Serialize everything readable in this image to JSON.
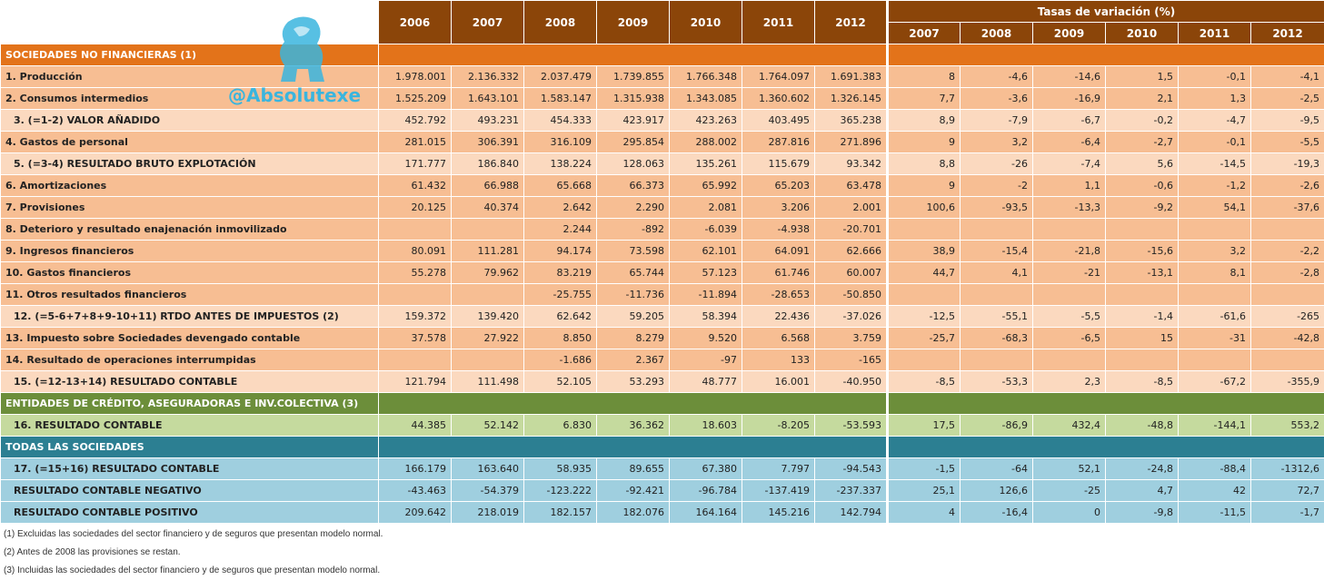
{
  "header": {
    "years": [
      "2006",
      "2007",
      "2008",
      "2009",
      "2010",
      "2011",
      "2012"
    ],
    "rates_title": "Tasas de variación (%)",
    "rate_years": [
      "2007",
      "2008",
      "2009",
      "2010",
      "2011",
      "2012"
    ]
  },
  "watermark": {
    "handle": "@Absolutexe",
    "logo": "gryphon-logo-icon"
  },
  "sections": {
    "s1": "SOCIEDADES NO FINANCIERAS (1)",
    "s2": "ENTIDADES DE CRÉDITO, ASEGURADORAS E INV.COLECTIVA (3)",
    "s3": "TODAS LAS SOCIEDADES"
  },
  "rows": [
    {
      "label": "1. Producción",
      "values": [
        "1.978.001",
        "2.136.332",
        "2.037.479",
        "1.739.855",
        "1.766.348",
        "1.764.097",
        "1.691.383"
      ],
      "rates": [
        "8",
        "-4,6",
        "-14,6",
        "1,5",
        "-0,1",
        "-4,1"
      ]
    },
    {
      "label": "2. Consumos intermedios",
      "values": [
        "1.525.209",
        "1.643.101",
        "1.583.147",
        "1.315.938",
        "1.343.085",
        "1.360.602",
        "1.326.145"
      ],
      "rates": [
        "7,7",
        "-3,6",
        "-16,9",
        "2,1",
        "1,3",
        "-2,5"
      ]
    },
    {
      "label": "3. (=1-2) VALOR AÑADIDO",
      "values": [
        "452.792",
        "493.231",
        "454.333",
        "423.917",
        "423.263",
        "403.495",
        "365.238"
      ],
      "rates": [
        "8,9",
        "-7,9",
        "-6,7",
        "-0,2",
        "-4,7",
        "-9,5"
      ]
    },
    {
      "label": "4. Gastos de personal",
      "values": [
        "281.015",
        "306.391",
        "316.109",
        "295.854",
        "288.002",
        "287.816",
        "271.896"
      ],
      "rates": [
        "9",
        "3,2",
        "-6,4",
        "-2,7",
        "-0,1",
        "-5,5"
      ]
    },
    {
      "label": "5. (=3-4) RESULTADO BRUTO EXPLOTACIÓN",
      "values": [
        "171.777",
        "186.840",
        "138.224",
        "128.063",
        "135.261",
        "115.679",
        "93.342"
      ],
      "rates": [
        "8,8",
        "-26",
        "-7,4",
        "5,6",
        "-14,5",
        "-19,3"
      ]
    },
    {
      "label": "6. Amortizaciones",
      "values": [
        "61.432",
        "66.988",
        "65.668",
        "66.373",
        "65.992",
        "65.203",
        "63.478"
      ],
      "rates": [
        "9",
        "-2",
        "1,1",
        "-0,6",
        "-1,2",
        "-2,6"
      ]
    },
    {
      "label": "7. Provisiones",
      "values": [
        "20.125",
        "40.374",
        "2.642",
        "2.290",
        "2.081",
        "3.206",
        "2.001"
      ],
      "rates": [
        "100,6",
        "-93,5",
        "-13,3",
        "-9,2",
        "54,1",
        "-37,6"
      ]
    },
    {
      "label": "8. Deterioro y resultado enajenación inmovilizado",
      "values": [
        "",
        "",
        "2.244",
        "-892",
        "-6.039",
        "-4.938",
        "-20.701"
      ],
      "rates": [
        "",
        "",
        "",
        "",
        "",
        ""
      ]
    },
    {
      "label": "9. Ingresos financieros",
      "values": [
        "80.091",
        "111.281",
        "94.174",
        "73.598",
        "62.101",
        "64.091",
        "62.666"
      ],
      "rates": [
        "38,9",
        "-15,4",
        "-21,8",
        "-15,6",
        "3,2",
        "-2,2"
      ]
    },
    {
      "label": "10. Gastos financieros",
      "values": [
        "55.278",
        "79.962",
        "83.219",
        "65.744",
        "57.123",
        "61.746",
        "60.007"
      ],
      "rates": [
        "44,7",
        "4,1",
        "-21",
        "-13,1",
        "8,1",
        "-2,8"
      ]
    },
    {
      "label": "11. Otros resultados financieros",
      "values": [
        "",
        "",
        "-25.755",
        "-11.736",
        "-11.894",
        "-28.653",
        "-50.850"
      ],
      "rates": [
        "",
        "",
        "",
        "",
        "",
        ""
      ]
    },
    {
      "label": "12. (=5-6+7+8+9-10+11) RTDO ANTES DE IMPUESTOS (2)",
      "values": [
        "159.372",
        "139.420",
        "62.642",
        "59.205",
        "58.394",
        "22.436",
        "-37.026"
      ],
      "rates": [
        "-12,5",
        "-55,1",
        "-5,5",
        "-1,4",
        "-61,6",
        "-265"
      ]
    },
    {
      "label": "13. Impuesto sobre Sociedades devengado contable",
      "values": [
        "37.578",
        "27.922",
        "8.850",
        "8.279",
        "9.520",
        "6.568",
        "3.759"
      ],
      "rates": [
        "-25,7",
        "-68,3",
        "-6,5",
        "15",
        "-31",
        "-42,8"
      ]
    },
    {
      "label": "14. Resultado de operaciones interrumpidas",
      "values": [
        "",
        "",
        "-1.686",
        "2.367",
        "-97",
        "133",
        "-165"
      ],
      "rates": [
        "",
        "",
        "",
        "",
        "",
        ""
      ]
    },
    {
      "label": "15. (=12-13+14) RESULTADO CONTABLE",
      "values": [
        "121.794",
        "111.498",
        "52.105",
        "53.293",
        "48.777",
        "16.001",
        "-40.950"
      ],
      "rates": [
        "-8,5",
        "-53,3",
        "2,3",
        "-8,5",
        "-67,2",
        "-355,9"
      ]
    },
    {
      "label": "16. RESULTADO CONTABLE",
      "values": [
        "44.385",
        "52.142",
        "6.830",
        "36.362",
        "18.603",
        "-8.205",
        "-53.593"
      ],
      "rates": [
        "17,5",
        "-86,9",
        "432,4",
        "-48,8",
        "-144,1",
        "553,2"
      ]
    },
    {
      "label": "17. (=15+16) RESULTADO CONTABLE",
      "values": [
        "166.179",
        "163.640",
        "58.935",
        "89.655",
        "67.380",
        "7.797",
        "-94.543"
      ],
      "rates": [
        "-1,5",
        "-64",
        "52,1",
        "-24,8",
        "-88,4",
        "-1312,6"
      ]
    },
    {
      "label": "RESULTADO CONTABLE NEGATIVO",
      "values": [
        "-43.463",
        "-54.379",
        "-123.222",
        "-92.421",
        "-96.784",
        "-137.419",
        "-237.337"
      ],
      "rates": [
        "25,1",
        "126,6",
        "-25",
        "4,7",
        "42",
        "72,7"
      ]
    },
    {
      "label": "RESULTADO CONTABLE POSITIVO",
      "values": [
        "209.642",
        "218.019",
        "182.157",
        "182.076",
        "164.164",
        "145.216",
        "142.794"
      ],
      "rates": [
        "4",
        "-16,4",
        "0",
        "-9,8",
        "-11,5",
        "-1,7"
      ]
    }
  ],
  "notes": [
    "(1) Excluidas las sociedades del sector financiero y de seguros que presentan modelo normal.",
    "(2) Antes de 2008 las provisiones se restan.",
    "(3) Incluidas las sociedades del sector financiero y de seguros que presentan modelo normal."
  ]
}
